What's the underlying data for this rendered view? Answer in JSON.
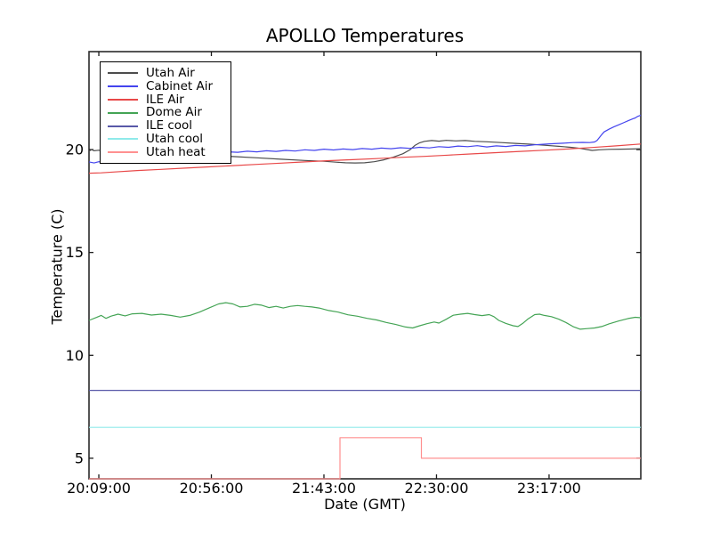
{
  "chart_data": {
    "type": "line",
    "title": "APOLLO Temperatures",
    "xlabel": "Date (GMT)",
    "ylabel": "Temperature (C)",
    "x_unit": "minutes_since_20:00_GMT",
    "xlim": [
      4.9,
      235.3
    ],
    "ylim": [
      4.0,
      24.76
    ],
    "grid": false,
    "legend_position": "upper-left",
    "x_ticks": [
      {
        "label": "20:09:00",
        "value": 9
      },
      {
        "label": "20:56:00",
        "value": 56
      },
      {
        "label": "21:43:00",
        "value": 103
      },
      {
        "label": "22:30:00",
        "value": 150
      },
      {
        "label": "23:17:00",
        "value": 197
      }
    ],
    "y_ticks": [
      {
        "label": "5",
        "value": 5
      },
      {
        "label": "10",
        "value": 10
      },
      {
        "label": "15",
        "value": 15
      },
      {
        "label": "20",
        "value": 20
      }
    ],
    "series": [
      {
        "name": "Utah Air",
        "color": "#4d4d4d",
        "points": [
          [
            4.9,
            19.92
          ],
          [
            6,
            20.0
          ],
          [
            7,
            19.94
          ],
          [
            9,
            19.97
          ],
          [
            12,
            19.92
          ],
          [
            18,
            19.87
          ],
          [
            25,
            19.82
          ],
          [
            35,
            19.76
          ],
          [
            45,
            19.72
          ],
          [
            55,
            19.69
          ],
          [
            65,
            19.66
          ],
          [
            75,
            19.6
          ],
          [
            85,
            19.53
          ],
          [
            95,
            19.47
          ],
          [
            103,
            19.43
          ],
          [
            108,
            19.39
          ],
          [
            112,
            19.36
          ],
          [
            116,
            19.35
          ],
          [
            120,
            19.36
          ],
          [
            124,
            19.41
          ],
          [
            128,
            19.5
          ],
          [
            132,
            19.63
          ],
          [
            136,
            19.8
          ],
          [
            139,
            20.0
          ],
          [
            141,
            20.2
          ],
          [
            143,
            20.33
          ],
          [
            145,
            20.4
          ],
          [
            148,
            20.44
          ],
          [
            151,
            20.41
          ],
          [
            154,
            20.45
          ],
          [
            158,
            20.42
          ],
          [
            162,
            20.44
          ],
          [
            166,
            20.4
          ],
          [
            171,
            20.38
          ],
          [
            177,
            20.34
          ],
          [
            183,
            20.3
          ],
          [
            189,
            20.26
          ],
          [
            195,
            20.21
          ],
          [
            201,
            20.16
          ],
          [
            206,
            20.11
          ],
          [
            210,
            20.06
          ],
          [
            213,
            20.0
          ],
          [
            215,
            19.96
          ],
          [
            218,
            19.99
          ],
          [
            222,
            20.01
          ],
          [
            227,
            20.02
          ],
          [
            232,
            20.03
          ],
          [
            235.3,
            20.04
          ]
        ]
      },
      {
        "name": "Cabinet Air",
        "color": "#4444ee",
        "points": [
          [
            4.9,
            19.4
          ],
          [
            7,
            19.35
          ],
          [
            9,
            19.41
          ],
          [
            11,
            19.37
          ],
          [
            15,
            19.44
          ],
          [
            20,
            19.51
          ],
          [
            28,
            19.6
          ],
          [
            36,
            19.68
          ],
          [
            44,
            19.75
          ],
          [
            52,
            19.81
          ],
          [
            58,
            19.85
          ],
          [
            63,
            19.89
          ],
          [
            67,
            19.87
          ],
          [
            71,
            19.92
          ],
          [
            75,
            19.89
          ],
          [
            79,
            19.94
          ],
          [
            83,
            19.91
          ],
          [
            87,
            19.96
          ],
          [
            91,
            19.93
          ],
          [
            95,
            19.99
          ],
          [
            99,
            19.96
          ],
          [
            103,
            20.02
          ],
          [
            107,
            19.98
          ],
          [
            111,
            20.03
          ],
          [
            115,
            20.0
          ],
          [
            119,
            20.05
          ],
          [
            123,
            20.02
          ],
          [
            127,
            20.07
          ],
          [
            131,
            20.04
          ],
          [
            135,
            20.09
          ],
          [
            139,
            20.06
          ],
          [
            143,
            20.11
          ],
          [
            147,
            20.08
          ],
          [
            151,
            20.14
          ],
          [
            155,
            20.11
          ],
          [
            159,
            20.17
          ],
          [
            163,
            20.14
          ],
          [
            167,
            20.19
          ],
          [
            171,
            20.13
          ],
          [
            175,
            20.18
          ],
          [
            179,
            20.15
          ],
          [
            183,
            20.2
          ],
          [
            187,
            20.18
          ],
          [
            191,
            20.23
          ],
          [
            195,
            20.26
          ],
          [
            199,
            20.29
          ],
          [
            203,
            20.31
          ],
          [
            207,
            20.34
          ],
          [
            211,
            20.35
          ],
          [
            214,
            20.34
          ],
          [
            216,
            20.37
          ],
          [
            217,
            20.44
          ],
          [
            218,
            20.58
          ],
          [
            219,
            20.73
          ],
          [
            220,
            20.86
          ],
          [
            222,
            20.99
          ],
          [
            224,
            21.1
          ],
          [
            226,
            21.2
          ],
          [
            228,
            21.3
          ],
          [
            230,
            21.4
          ],
          [
            232,
            21.5
          ],
          [
            233,
            21.54
          ],
          [
            234,
            21.61
          ],
          [
            235.3,
            21.67
          ]
        ]
      },
      {
        "name": "ILE Air",
        "color": "#e84848",
        "points": [
          [
            4.9,
            18.85
          ],
          [
            10,
            18.87
          ],
          [
            15,
            18.91
          ],
          [
            25,
            18.98
          ],
          [
            35,
            19.04
          ],
          [
            45,
            19.1
          ],
          [
            55,
            19.16
          ],
          [
            65,
            19.22
          ],
          [
            75,
            19.28
          ],
          [
            85,
            19.34
          ],
          [
            95,
            19.4
          ],
          [
            105,
            19.46
          ],
          [
            115,
            19.51
          ],
          [
            125,
            19.56
          ],
          [
            135,
            19.62
          ],
          [
            145,
            19.67
          ],
          [
            155,
            19.73
          ],
          [
            165,
            19.79
          ],
          [
            175,
            19.85
          ],
          [
            185,
            19.91
          ],
          [
            195,
            19.97
          ],
          [
            205,
            20.03
          ],
          [
            215,
            20.1
          ],
          [
            225,
            20.18
          ],
          [
            235.3,
            20.27
          ]
        ]
      },
      {
        "name": "Dome Air",
        "color": "#44a455",
        "points": [
          [
            4.9,
            11.7
          ],
          [
            8,
            11.84
          ],
          [
            10,
            11.94
          ],
          [
            12,
            11.8
          ],
          [
            14,
            11.9
          ],
          [
            17,
            12.0
          ],
          [
            20,
            11.92
          ],
          [
            23,
            12.02
          ],
          [
            27,
            12.04
          ],
          [
            31,
            11.96
          ],
          [
            35,
            12.0
          ],
          [
            39,
            11.94
          ],
          [
            43,
            11.86
          ],
          [
            47,
            11.94
          ],
          [
            51,
            12.1
          ],
          [
            55,
            12.3
          ],
          [
            59,
            12.5
          ],
          [
            62,
            12.56
          ],
          [
            65,
            12.5
          ],
          [
            68,
            12.35
          ],
          [
            71,
            12.38
          ],
          [
            74,
            12.48
          ],
          [
            77,
            12.44
          ],
          [
            80,
            12.32
          ],
          [
            83,
            12.38
          ],
          [
            86,
            12.3
          ],
          [
            89,
            12.38
          ],
          [
            92,
            12.42
          ],
          [
            95,
            12.38
          ],
          [
            98,
            12.35
          ],
          [
            101,
            12.3
          ],
          [
            105,
            12.18
          ],
          [
            109,
            12.1
          ],
          [
            113,
            11.97
          ],
          [
            117,
            11.9
          ],
          [
            121,
            11.8
          ],
          [
            125,
            11.72
          ],
          [
            129,
            11.6
          ],
          [
            133,
            11.5
          ],
          [
            137,
            11.38
          ],
          [
            140,
            11.33
          ],
          [
            143,
            11.44
          ],
          [
            146,
            11.54
          ],
          [
            149,
            11.62
          ],
          [
            151,
            11.57
          ],
          [
            154,
            11.75
          ],
          [
            157,
            11.95
          ],
          [
            160,
            12.0
          ],
          [
            163,
            12.04
          ],
          [
            166,
            11.98
          ],
          [
            169,
            11.93
          ],
          [
            172,
            11.98
          ],
          [
            174,
            11.88
          ],
          [
            176,
            11.7
          ],
          [
            179,
            11.55
          ],
          [
            182,
            11.44
          ],
          [
            184,
            11.4
          ],
          [
            186,
            11.55
          ],
          [
            188,
            11.75
          ],
          [
            191,
            11.98
          ],
          [
            193,
            12.0
          ],
          [
            195,
            11.94
          ],
          [
            198,
            11.88
          ],
          [
            201,
            11.76
          ],
          [
            204,
            11.6
          ],
          [
            207,
            11.4
          ],
          [
            210,
            11.27
          ],
          [
            213,
            11.3
          ],
          [
            216,
            11.33
          ],
          [
            219,
            11.4
          ],
          [
            222,
            11.53
          ],
          [
            226,
            11.67
          ],
          [
            230,
            11.79
          ],
          [
            233,
            11.85
          ],
          [
            235.3,
            11.83
          ]
        ]
      },
      {
        "name": "ILE cool",
        "color": "#5858a8",
        "points": [
          [
            4.9,
            8.3
          ],
          [
            235.3,
            8.3
          ]
        ]
      },
      {
        "name": "Utah cool",
        "color": "#8feaea",
        "points": [
          [
            4.9,
            6.5
          ],
          [
            235.3,
            6.5
          ]
        ]
      },
      {
        "name": "Utah heat",
        "color": "#ff9090",
        "points": [
          [
            4.9,
            4.0
          ],
          [
            109.7,
            4.0
          ],
          [
            109.7,
            6.0
          ],
          [
            143.7,
            6.0
          ],
          [
            143.7,
            5.0
          ],
          [
            235.3,
            5.0
          ]
        ]
      }
    ]
  }
}
